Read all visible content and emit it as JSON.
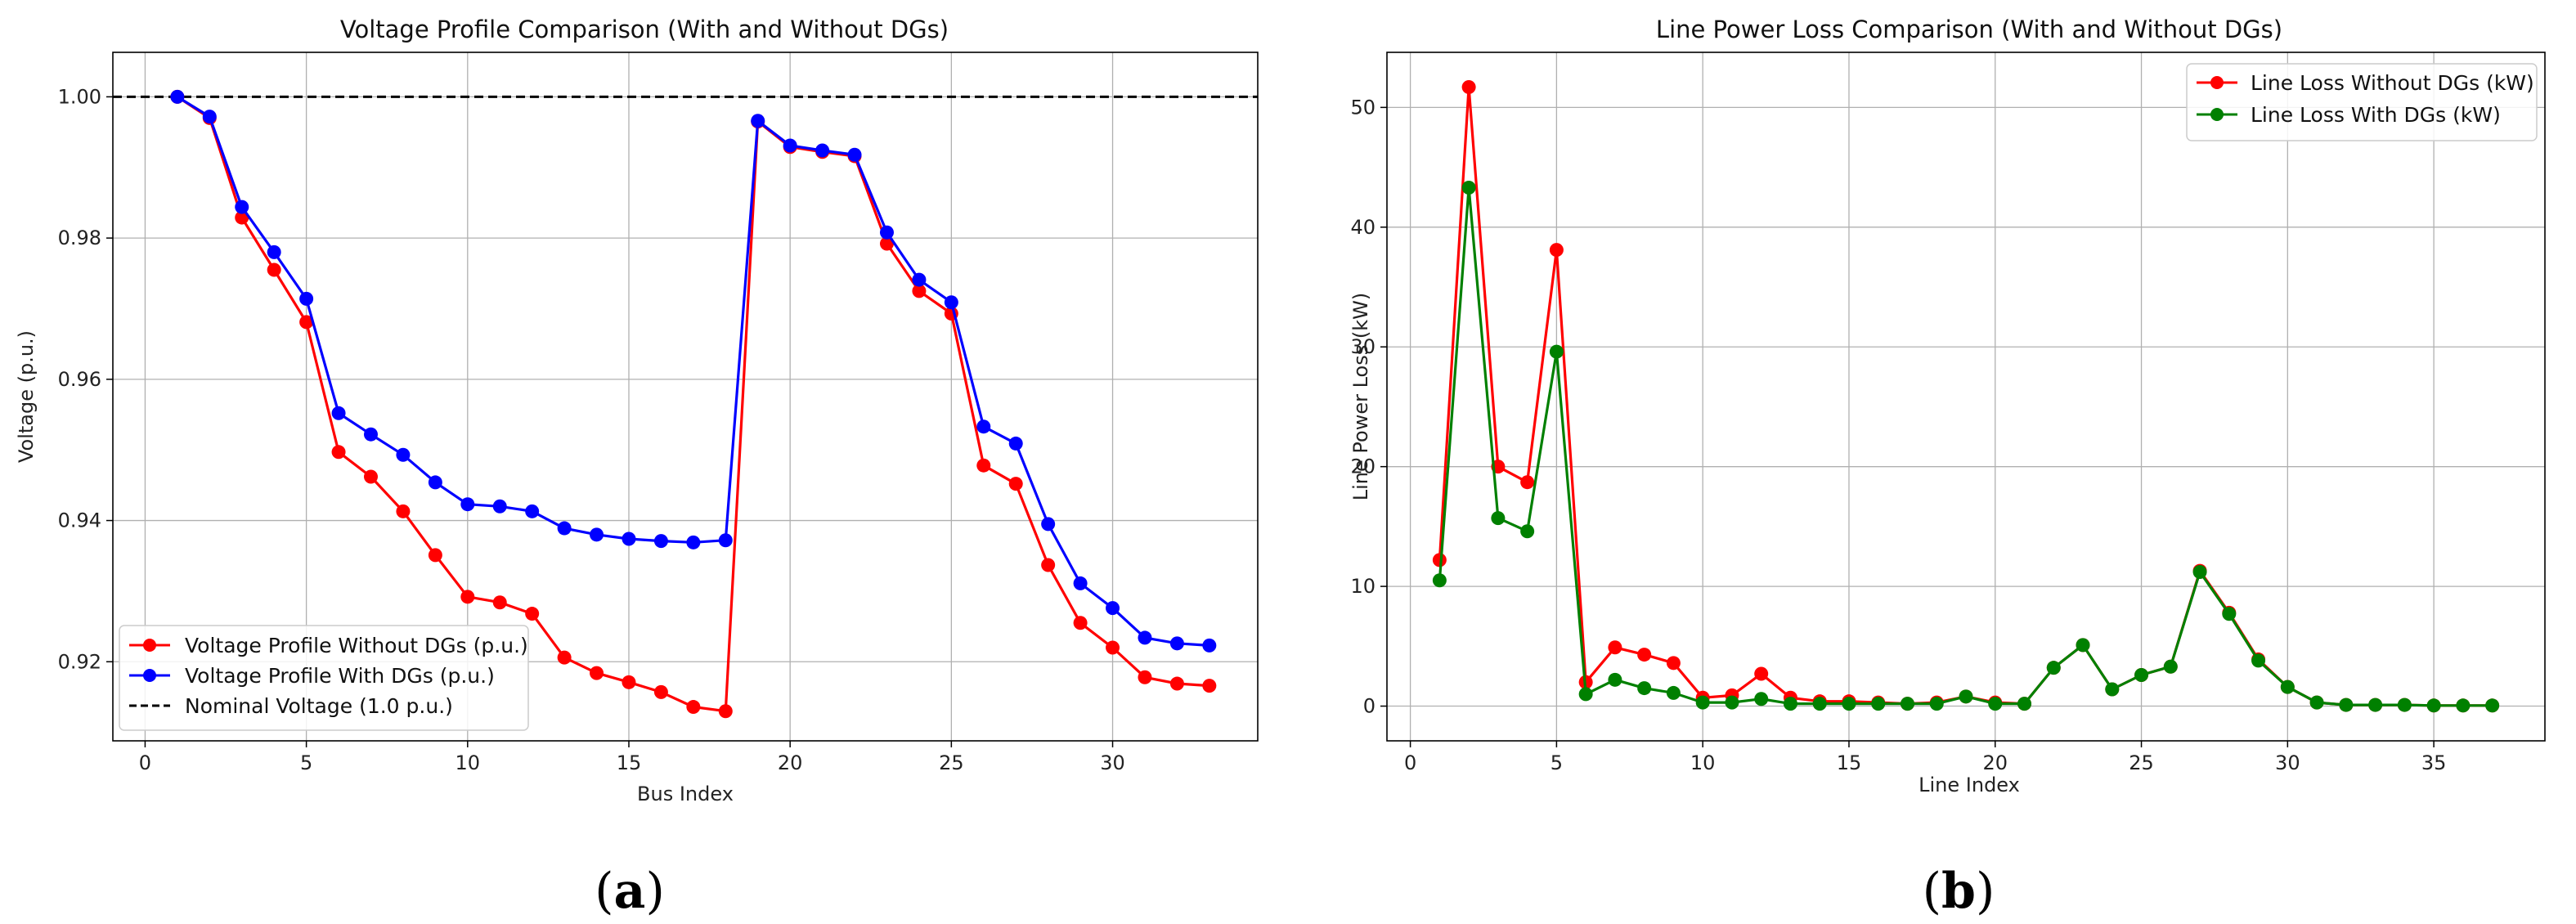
{
  "chart_data": [
    {
      "type": "line",
      "title": "Voltage Profile Comparison (With and Without DGs)",
      "xlabel": "Bus Index",
      "ylabel": "Voltage (p.u.)",
      "xlim": [
        -1,
        34.5
      ],
      "ylim": [
        0.9088,
        1.0063
      ],
      "xticks": [
        0,
        5,
        10,
        15,
        20,
        25,
        30
      ],
      "yticks": [
        0.92,
        0.94,
        0.96,
        0.98,
        1.0
      ],
      "ytick_labels": [
        "0.92",
        "0.94",
        "0.96",
        "0.98",
        "1.00"
      ],
      "grid": true,
      "legend_position": "lower-left",
      "x": [
        1,
        2,
        3,
        4,
        5,
        6,
        7,
        8,
        9,
        10,
        11,
        12,
        13,
        14,
        15,
        16,
        17,
        18,
        19,
        20,
        21,
        22,
        23,
        24,
        25,
        26,
        27,
        28,
        29,
        30,
        31,
        32,
        33
      ],
      "series": [
        {
          "name": "Voltage Profile Without DGs (p.u.)",
          "color": "#ff0000",
          "values": [
            1.0,
            0.997,
            0.9829,
            0.9755,
            0.9681,
            0.9497,
            0.9462,
            0.9413,
            0.9351,
            0.9292,
            0.9284,
            0.9268,
            0.9206,
            0.9184,
            0.9171,
            0.9157,
            0.9136,
            0.913,
            0.9965,
            0.9929,
            0.9922,
            0.9916,
            0.9792,
            0.9725,
            0.9693,
            0.9478,
            0.9452,
            0.9337,
            0.9255,
            0.922,
            0.9178,
            0.9169,
            0.9166
          ]
        },
        {
          "name": "Voltage Profile With DGs (p.u.)",
          "color": "#0000ff",
          "values": [
            1.0,
            0.9972,
            0.9844,
            0.978,
            0.9714,
            0.9552,
            0.9522,
            0.9493,
            0.9454,
            0.9423,
            0.942,
            0.9413,
            0.9389,
            0.938,
            0.9374,
            0.9371,
            0.9369,
            0.9372,
            0.9966,
            0.9931,
            0.9924,
            0.9918,
            0.9808,
            0.9741,
            0.9709,
            0.9533,
            0.9509,
            0.9395,
            0.9311,
            0.9276,
            0.9234,
            0.9226,
            0.9223
          ]
        }
      ],
      "reference_line": {
        "name": "Nominal Voltage (1.0 p.u.)",
        "y": 1.0,
        "color": "#000000",
        "style": "dashed"
      }
    },
    {
      "type": "line",
      "title": "Line Power Loss Comparison (With and Without DGs)",
      "xlabel": "Line Index",
      "ylabel": "Line Power Loss (kW)",
      "xlim": [
        -0.8,
        38.8
      ],
      "ylim": [
        -2.9,
        54.6
      ],
      "xticks": [
        0,
        5,
        10,
        15,
        20,
        25,
        30,
        35
      ],
      "yticks": [
        0,
        10,
        20,
        30,
        40,
        50
      ],
      "ytick_labels": [
        "0",
        "10",
        "20",
        "30",
        "40",
        "50"
      ],
      "grid": true,
      "legend_position": "top-right",
      "x": [
        1,
        2,
        3,
        4,
        5,
        6,
        7,
        8,
        9,
        10,
        11,
        12,
        13,
        14,
        15,
        16,
        17,
        18,
        19,
        20,
        21,
        22,
        23,
        24,
        25,
        26,
        27,
        28,
        29,
        30,
        31,
        32,
        33,
        34,
        35,
        36,
        37
      ],
      "series": [
        {
          "name": "Line Loss Without DGs (kW)",
          "color": "#ff0000",
          "values": [
            12.2,
            51.7,
            20.0,
            18.7,
            38.1,
            2.0,
            4.9,
            4.3,
            3.6,
            0.7,
            0.9,
            2.7,
            0.7,
            0.4,
            0.4,
            0.3,
            0.2,
            0.3,
            0.8,
            0.3,
            0.2,
            3.2,
            5.1,
            1.4,
            2.6,
            3.3,
            11.3,
            7.8,
            3.9,
            1.6,
            0.3,
            0.1,
            0.1,
            0.1,
            0.05,
            0.05,
            0.05
          ]
        },
        {
          "name": "Line Loss With DGs (kW)",
          "color": "#008000",
          "values": [
            10.5,
            43.3,
            15.7,
            14.6,
            29.6,
            1.0,
            2.2,
            1.5,
            1.1,
            0.3,
            0.3,
            0.6,
            0.2,
            0.2,
            0.2,
            0.2,
            0.2,
            0.2,
            0.8,
            0.2,
            0.2,
            3.2,
            5.1,
            1.4,
            2.6,
            3.3,
            11.2,
            7.7,
            3.8,
            1.6,
            0.3,
            0.1,
            0.1,
            0.1,
            0.05,
            0.05,
            0.05
          ]
        }
      ]
    }
  ],
  "captions": {
    "a": {
      "open": "(",
      "letter": "a",
      "close": ")"
    },
    "b": {
      "open": "(",
      "letter": "b",
      "close": ")"
    }
  }
}
